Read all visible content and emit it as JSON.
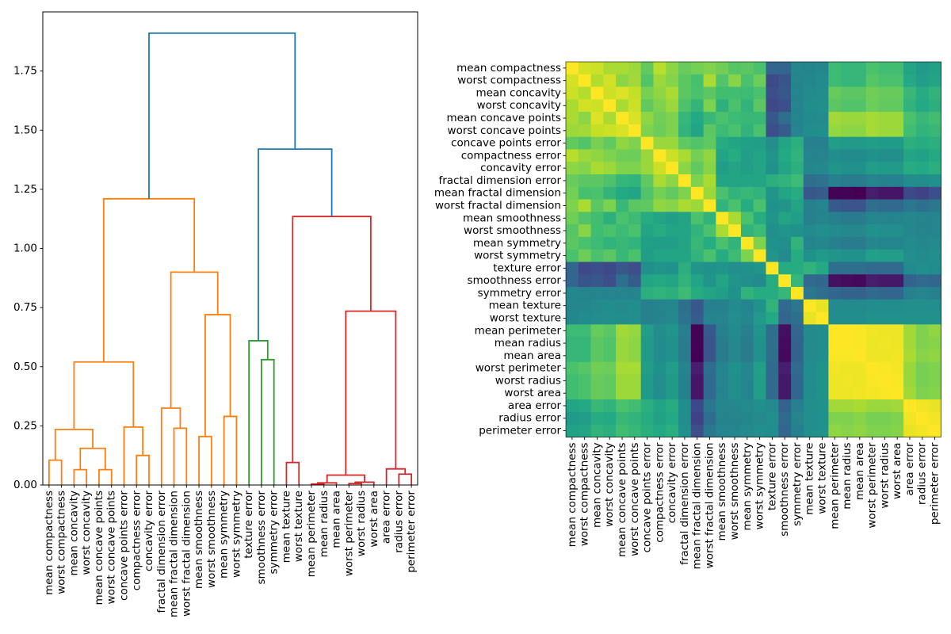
{
  "figure": {
    "background": "#ffffff"
  },
  "chart_data": [
    {
      "type": "dendrogram",
      "title": "",
      "xlabel": "",
      "ylabel": "",
      "ylim": [
        0,
        2.0
      ],
      "grid": false,
      "yticks": [
        0,
        0.25,
        0.5,
        0.75,
        1.0,
        1.25,
        1.5,
        1.75
      ],
      "ytick_labels": [
        "0.00",
        "0.25",
        "0.50",
        "0.75",
        "1.00",
        "1.25",
        "1.50",
        "1.75"
      ],
      "leaf_labels": [
        "mean compactness",
        "worst compactness",
        "mean concavity",
        "worst concavity",
        "mean concave points",
        "worst concave points",
        "concave points error",
        "compactness error",
        "concavity error",
        "fractal dimension error",
        "mean fractal dimension",
        "worst fractal dimension",
        "mean smoothness",
        "worst smoothness",
        "mean symmetry",
        "worst symmetry",
        "texture error",
        "smoothness error",
        "symmetry error",
        "mean texture",
        "worst texture",
        "mean perimeter",
        "mean radius",
        "mean area",
        "worst perimeter",
        "worst radius",
        "worst area",
        "area error",
        "radius error",
        "perimeter error"
      ],
      "link_colors": {
        "above_threshold": "#1f77b4",
        "cluster_orange": "#ff7f0e",
        "cluster_green": "#2ca02c",
        "cluster_red": "#d62728"
      },
      "merges": [
        {
          "a": "L0",
          "b": "L1",
          "h": 0.105,
          "color": "#ff7f0e"
        },
        {
          "a": "L2",
          "b": "L3",
          "h": 0.065,
          "color": "#ff7f0e"
        },
        {
          "a": "L4",
          "b": "L5",
          "h": 0.065,
          "color": "#ff7f0e"
        },
        {
          "a": "M1",
          "b": "M2",
          "h": 0.155,
          "color": "#ff7f0e"
        },
        {
          "a": "M0",
          "b": "M3",
          "h": 0.235,
          "color": "#ff7f0e"
        },
        {
          "a": "L7",
          "b": "L8",
          "h": 0.125,
          "color": "#ff7f0e"
        },
        {
          "a": "L6",
          "b": "M5",
          "h": 0.245,
          "color": "#ff7f0e"
        },
        {
          "a": "M4",
          "b": "M6",
          "h": 0.52,
          "color": "#ff7f0e"
        },
        {
          "a": "L10",
          "b": "L11",
          "h": 0.24,
          "color": "#ff7f0e"
        },
        {
          "a": "L9",
          "b": "M8",
          "h": 0.325,
          "color": "#ff7f0e"
        },
        {
          "a": "L12",
          "b": "L13",
          "h": 0.205,
          "color": "#ff7f0e"
        },
        {
          "a": "L14",
          "b": "L15",
          "h": 0.29,
          "color": "#ff7f0e"
        },
        {
          "a": "M10",
          "b": "M11",
          "h": 0.72,
          "color": "#ff7f0e"
        },
        {
          "a": "M9",
          "b": "M12",
          "h": 0.9,
          "color": "#ff7f0e"
        },
        {
          "a": "M7",
          "b": "M13",
          "h": 1.21,
          "color": "#ff7f0e"
        },
        {
          "a": "L17",
          "b": "L18",
          "h": 0.53,
          "color": "#2ca02c"
        },
        {
          "a": "L16",
          "b": "M15",
          "h": 0.61,
          "color": "#2ca02c"
        },
        {
          "a": "L19",
          "b": "L20",
          "h": 0.095,
          "color": "#d62728"
        },
        {
          "a": "L21",
          "b": "L22",
          "h": 0.004,
          "color": "#d62728"
        },
        {
          "a": "M18",
          "b": "L23",
          "h": 0.009,
          "color": "#d62728"
        },
        {
          "a": "L24",
          "b": "L25",
          "h": 0.006,
          "color": "#d62728"
        },
        {
          "a": "M20",
          "b": "L26",
          "h": 0.012,
          "color": "#d62728"
        },
        {
          "a": "M19",
          "b": "M21",
          "h": 0.042,
          "color": "#d62728"
        },
        {
          "a": "L28",
          "b": "L29",
          "h": 0.046,
          "color": "#d62728"
        },
        {
          "a": "L27",
          "b": "M23",
          "h": 0.068,
          "color": "#d62728"
        },
        {
          "a": "M22",
          "b": "M24",
          "h": 0.735,
          "color": "#d62728"
        },
        {
          "a": "M17",
          "b": "M25",
          "h": 1.135,
          "color": "#d62728"
        },
        {
          "a": "M16",
          "b": "M26",
          "h": 1.42,
          "color": "#1f77b4"
        },
        {
          "a": "M14",
          "b": "M27",
          "h": 1.91,
          "color": "#1f77b4"
        }
      ]
    },
    {
      "type": "heatmap",
      "title": "",
      "labels": [
        "mean compactness",
        "worst compactness",
        "mean concavity",
        "worst concavity",
        "mean concave points",
        "worst concave points",
        "concave points error",
        "compactness error",
        "concavity error",
        "fractal dimension error",
        "mean fractal dimension",
        "worst fractal dimension",
        "mean smoothness",
        "worst smoothness",
        "mean symmetry",
        "worst symmetry",
        "texture error",
        "smoothness error",
        "symmetry error",
        "mean texture",
        "worst texture",
        "mean perimeter",
        "mean radius",
        "mean area",
        "worst perimeter",
        "worst radius",
        "worst area",
        "area error",
        "radius error",
        "perimeter error"
      ],
      "colormap": "viridis",
      "colormap_stops": [
        [
          0,
          "#440154"
        ],
        [
          0.1,
          "#482878"
        ],
        [
          0.2,
          "#3e4989"
        ],
        [
          0.3,
          "#31688e"
        ],
        [
          0.4,
          "#26828e"
        ],
        [
          0.5,
          "#21918c"
        ],
        [
          0.6,
          "#22a884"
        ],
        [
          0.7,
          "#44bf70"
        ],
        [
          0.8,
          "#7ad151"
        ],
        [
          0.9,
          "#bddf26"
        ],
        [
          1,
          "#fde725"
        ]
      ],
      "vmin": -0.56,
      "vmax": 1.0,
      "matrix_storage": "upper-triangle-by-row-symmetric",
      "matrix_upper": [
        [
          1,
          0.9,
          0.88,
          0.8,
          0.8,
          0.77,
          0.62,
          0.83,
          0.73,
          0.64,
          0.67,
          0.7,
          0.66,
          0.58,
          0.6,
          0.55,
          -0.1,
          -0.1,
          0.12,
          0.1,
          0.12,
          0.5,
          0.47,
          0.47,
          0.55,
          0.52,
          0.52,
          0.35,
          0.28,
          0.33
        ],
        [
          1,
          0.82,
          0.89,
          0.73,
          0.78,
          0.57,
          0.77,
          0.71,
          0.6,
          0.54,
          0.8,
          0.57,
          0.72,
          0.55,
          0.65,
          -0.25,
          -0.2,
          0.08,
          0.12,
          0.15,
          0.5,
          0.47,
          0.47,
          0.58,
          0.55,
          0.55,
          0.38,
          0.3,
          0.35
        ],
        [
          1,
          0.88,
          0.92,
          0.86,
          0.68,
          0.74,
          0.8,
          0.6,
          0.55,
          0.6,
          0.52,
          0.52,
          0.5,
          0.55,
          -0.22,
          -0.18,
          0.1,
          0.15,
          0.17,
          0.63,
          0.6,
          0.6,
          0.66,
          0.63,
          0.63,
          0.48,
          0.4,
          0.45
        ],
        [
          1,
          0.8,
          0.88,
          0.62,
          0.7,
          0.77,
          0.56,
          0.46,
          0.69,
          0.43,
          0.55,
          0.45,
          0.6,
          -0.25,
          -0.22,
          0.08,
          0.18,
          0.2,
          0.6,
          0.57,
          0.57,
          0.65,
          0.62,
          0.62,
          0.45,
          0.38,
          0.42
        ],
        [
          1,
          0.91,
          0.74,
          0.66,
          0.7,
          0.47,
          0.38,
          0.48,
          0.55,
          0.5,
          0.48,
          0.48,
          -0.18,
          -0.05,
          0.1,
          0.15,
          0.17,
          0.78,
          0.76,
          0.76,
          0.79,
          0.77,
          0.77,
          0.55,
          0.48,
          0.52
        ],
        [
          1,
          0.7,
          0.65,
          0.7,
          0.45,
          0.35,
          0.6,
          0.5,
          0.55,
          0.45,
          0.55,
          -0.22,
          -0.15,
          0.08,
          0.18,
          0.2,
          0.75,
          0.73,
          0.73,
          0.79,
          0.77,
          0.77,
          0.52,
          0.45,
          0.48
        ],
        [
          1,
          0.76,
          0.76,
          0.61,
          0.57,
          0.61,
          0.4,
          0.35,
          0.32,
          0.3,
          0.2,
          0.35,
          0.42,
          0.05,
          0.05,
          0.3,
          0.28,
          0.28,
          0.3,
          0.28,
          0.28,
          0.42,
          0.4,
          0.42
        ],
        [
          1,
          0.88,
          0.8,
          0.67,
          0.74,
          0.35,
          0.4,
          0.3,
          0.35,
          0.25,
          0.38,
          0.45,
          0.08,
          0.1,
          0.18,
          0.16,
          0.16,
          0.22,
          0.2,
          0.2,
          0.35,
          0.33,
          0.38
        ],
        [
          1,
          0.73,
          0.62,
          0.72,
          0.3,
          0.35,
          0.3,
          0.35,
          0.22,
          0.35,
          0.42,
          0.12,
          0.14,
          0.25,
          0.23,
          0.23,
          0.3,
          0.28,
          0.28,
          0.4,
          0.38,
          0.42
        ],
        [
          1,
          0.7,
          0.8,
          0.35,
          0.35,
          0.35,
          0.35,
          0.42,
          0.45,
          0.5,
          -0.05,
          -0.03,
          0.05,
          0.03,
          0.03,
          0.08,
          0.06,
          0.06,
          0.18,
          0.18,
          0.22
        ],
        [
          1,
          0.77,
          0.55,
          0.45,
          0.48,
          0.45,
          0.25,
          0.35,
          0.4,
          -0.18,
          -0.15,
          -0.55,
          -0.55,
          -0.56,
          -0.45,
          -0.48,
          -0.48,
          -0.25,
          -0.28,
          -0.22
        ],
        [
          1,
          0.45,
          0.55,
          0.4,
          0.55,
          0.22,
          0.25,
          0.35,
          0.05,
          0.1,
          -0.16,
          -0.19,
          -0.19,
          -0.05,
          -0.08,
          -0.08,
          0,
          -0.05,
          0
        ],
        [
          1,
          0.8,
          0.55,
          0.4,
          0.25,
          0.35,
          0.3,
          0.05,
          0.08,
          0.05,
          0.03,
          0.03,
          0.1,
          0.08,
          0.08,
          0.12,
          0.08,
          0.1
        ],
        [
          1,
          0.45,
          0.5,
          0.2,
          0.25,
          0.22,
          0.15,
          0.2,
          0.15,
          0.13,
          0.13,
          0.22,
          0.2,
          0.2,
          0.12,
          0.08,
          0.1
        ],
        [
          1,
          0.7,
          0.22,
          0.2,
          0.45,
          0.1,
          0.12,
          0.05,
          0.03,
          0.03,
          0.12,
          0.1,
          0.1,
          0.15,
          0.12,
          0.15
        ],
        [
          1,
          0.25,
          0.15,
          0.4,
          0.22,
          0.28,
          0.25,
          0.22,
          0.22,
          0.32,
          0.3,
          0.3,
          0.2,
          0.15,
          0.2
        ],
        [
          1,
          0.4,
          0.4,
          0.45,
          0.38,
          -0.05,
          -0.05,
          -0.05,
          -0.08,
          -0.08,
          -0.08,
          0.15,
          0.2,
          0.18
        ],
        [
          1,
          0.47,
          -0.08,
          -0.1,
          -0.5,
          -0.52,
          -0.53,
          -0.45,
          -0.47,
          -0.47,
          -0.12,
          -0.08,
          -0.1
        ],
        [
          1,
          0,
          -0.05,
          -0.1,
          -0.12,
          -0.12,
          -0.08,
          -0.1,
          -0.1,
          0.05,
          0.08,
          0.05
        ],
        [
          1,
          0.95,
          0.15,
          0.15,
          0.15,
          0.18,
          0.18,
          0.18,
          0.2,
          0.2,
          0.2
        ],
        [
          1,
          0.18,
          0.18,
          0.18,
          0.22,
          0.22,
          0.22,
          0.22,
          0.22,
          0.22
        ],
        [
          1,
          1,
          0.99,
          0.97,
          0.96,
          0.96,
          0.78,
          0.7,
          0.74
        ],
        [
          1,
          0.99,
          0.96,
          0.97,
          0.96,
          0.78,
          0.7,
          0.72
        ],
        [
          1,
          0.96,
          0.96,
          0.97,
          0.8,
          0.72,
          0.74
        ],
        [
          1,
          0.99,
          0.98,
          0.76,
          0.68,
          0.7
        ],
        [
          1,
          0.99,
          0.76,
          0.68,
          0.7
        ],
        [
          1,
          0.78,
          0.7,
          0.71
        ],
        [
          1,
          0.97,
          0.95
        ],
        [
          1,
          0.97
        ],
        [
          1
        ]
      ]
    }
  ]
}
